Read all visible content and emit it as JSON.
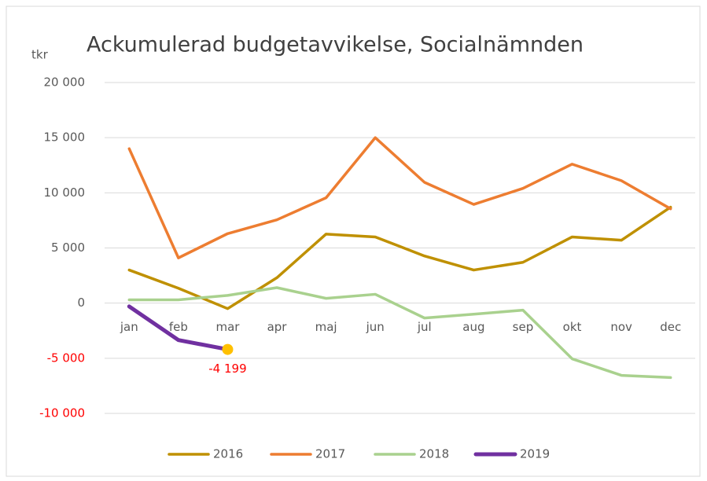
{
  "chart_data": {
    "type": "line",
    "title": "Ackumulerad budgetavvikelse, Socialnämnden",
    "y_label": "tkr",
    "categories": [
      "jan",
      "feb",
      "mar",
      "apr",
      "maj",
      "jun",
      "jul",
      "aug",
      "sep",
      "okt",
      "nov",
      "dec"
    ],
    "series": [
      {
        "name": "2016",
        "color": "#bf9000",
        "values": [
          3000,
          1350,
          -500,
          2300,
          6260,
          6000,
          4270,
          3000,
          3700,
          6000,
          5700,
          8700
        ]
      },
      {
        "name": "2017",
        "color": "#ed7d31",
        "values": [
          14000,
          4100,
          6300,
          7550,
          9550,
          15000,
          10950,
          8950,
          10400,
          12600,
          11100,
          8550
        ]
      },
      {
        "name": "2018",
        "color": "#a9d18e",
        "values": [
          300,
          300,
          700,
          1400,
          430,
          800,
          -1350,
          -1000,
          -640,
          -5050,
          -6550,
          -6750
        ]
      },
      {
        "name": "2019",
        "color": "#7030a0",
        "values": [
          -300,
          -3350,
          -4199,
          null,
          null,
          null,
          null,
          null,
          null,
          null,
          null,
          null
        ],
        "value_labels": [
          null,
          null,
          "-4 199",
          null,
          null,
          null,
          null,
          null,
          null,
          null,
          null,
          null
        ],
        "marker_color": "#ffc000",
        "label_color": "#ff0000"
      }
    ],
    "ylim": [
      -10000,
      20000
    ],
    "yticks": [
      {
        "value": -10000,
        "label": "-10 000"
      },
      {
        "value": -5000,
        "label": "-5 000"
      },
      0,
      {
        "value": 5000,
        "label": "5 000"
      },
      {
        "value": 10000,
        "label": "10 000"
      },
      {
        "value": 15000,
        "label": "15 000"
      },
      {
        "value": 20000,
        "label": "20 000"
      }
    ],
    "negative_tick_color": "#ff0000",
    "grid": true,
    "legend": "bottom"
  }
}
